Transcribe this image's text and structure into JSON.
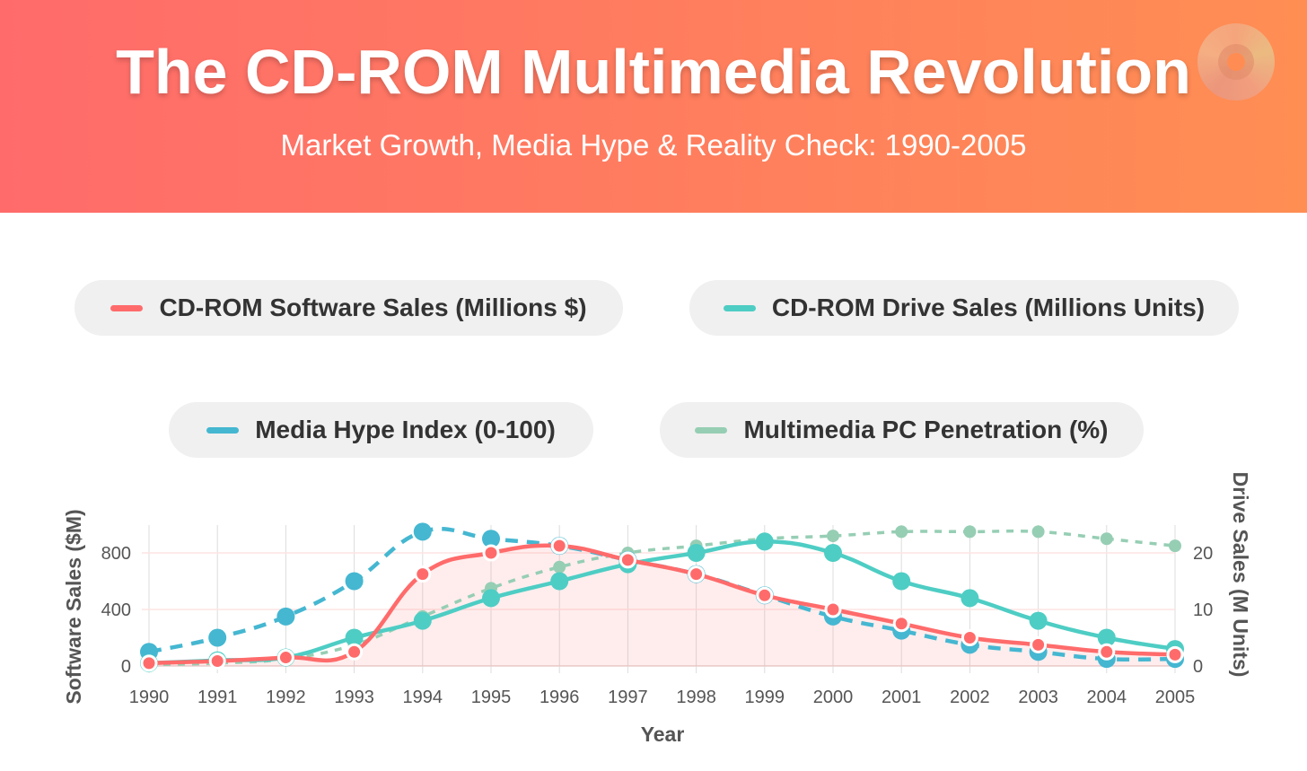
{
  "header": {
    "title": "The CD-ROM Multimedia Revolution",
    "subtitle": "Market Growth, Media Hype & Reality Check: 1990-2005",
    "icon": "cd-icon"
  },
  "chart_data": {
    "type": "line",
    "x": [
      "1990",
      "1991",
      "1992",
      "1993",
      "1994",
      "1995",
      "1996",
      "1997",
      "1998",
      "1999",
      "2000",
      "2001",
      "2002",
      "2003",
      "2004",
      "2005"
    ],
    "xlabel": "Year",
    "ylabel_left": "Software Sales ($M)",
    "ylabel_right": "Drive Sales (M Units)",
    "ylim_left": [
      0,
      1000
    ],
    "yticks_left": [
      "0",
      "400",
      "800"
    ],
    "ylim_right": [
      0,
      25
    ],
    "yticks_right": [
      "0",
      "10",
      "20"
    ],
    "series": [
      {
        "name": "CD-ROM Software Sales (Millions $)",
        "color": "#ff6b6b",
        "axis": "left",
        "values": [
          20,
          35,
          60,
          100,
          650,
          800,
          850,
          750,
          650,
          500,
          400,
          300,
          200,
          150,
          100,
          80
        ]
      },
      {
        "name": "CD-ROM Drive Sales (Millions Units)",
        "color": "#4ecdc4",
        "axis": "right",
        "values": [
          0.5,
          1,
          1.5,
          5,
          8,
          12,
          15,
          18,
          20,
          22,
          20,
          15,
          12,
          8,
          5,
          3
        ]
      },
      {
        "name": "Media Hype Index (0-100)",
        "color": "#45b7d1",
        "axis": "left-scaled-x10",
        "values": [
          10,
          20,
          35,
          60,
          95,
          90,
          85,
          75,
          65,
          50,
          35,
          25,
          15,
          10,
          5,
          5
        ]
      },
      {
        "name": "Multimedia PC Penetration (%)",
        "color": "#96ceb4",
        "axis": "left-scaled-x10",
        "values": [
          1,
          2,
          5,
          15,
          35,
          55,
          70,
          80,
          85,
          90,
          92,
          95,
          95,
          95,
          90,
          85
        ]
      }
    ]
  }
}
